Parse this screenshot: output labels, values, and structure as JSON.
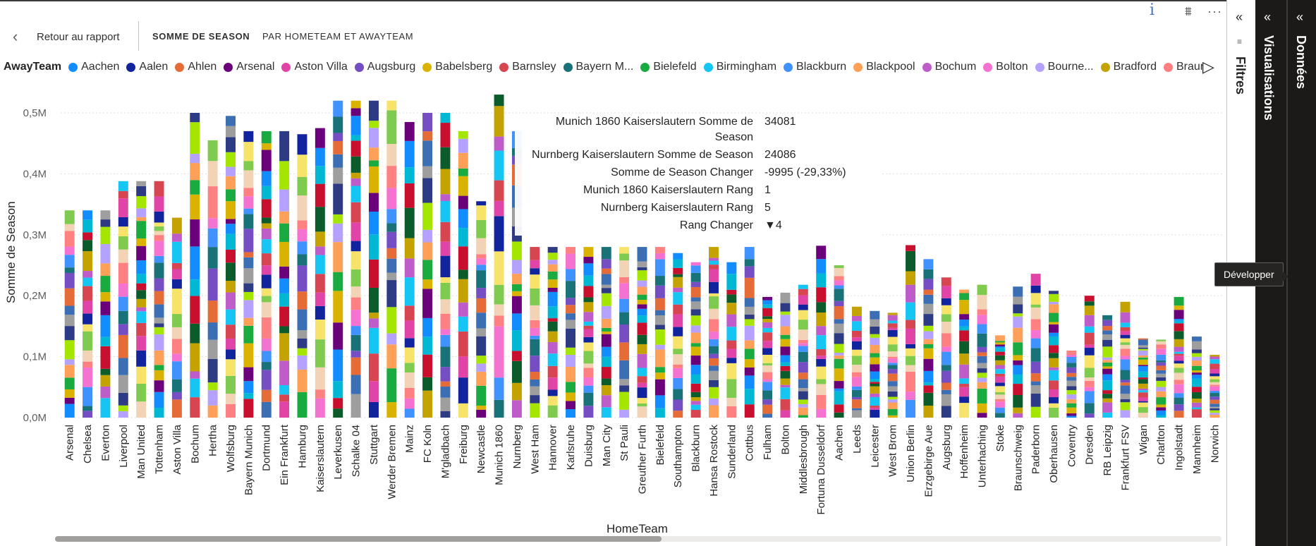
{
  "header": {
    "back_label": "Retour au rapport",
    "tabs": [
      {
        "label": "SOMME DE SEASON",
        "active": true
      },
      {
        "label": "PAR HOMETEAM ET AWAYTEAM",
        "active": false
      }
    ],
    "icons": [
      "info-icon",
      "filter-icon",
      "more-icon"
    ],
    "info_glyph": "i",
    "filter_glyph": "⩩",
    "more_glyph": "···"
  },
  "legend": {
    "title": "AwayTeam",
    "items": [
      {
        "label": "Aachen",
        "color": "#118DFF"
      },
      {
        "label": "Aalen",
        "color": "#12239E"
      },
      {
        "label": "Ahlen",
        "color": "#E66C37"
      },
      {
        "label": "Arsenal",
        "color": "#6B007B"
      },
      {
        "label": "Aston Villa",
        "color": "#E044A7"
      },
      {
        "label": "Augsburg",
        "color": "#744EC2"
      },
      {
        "label": "Babelsberg",
        "color": "#D9B300"
      },
      {
        "label": "Barnsley",
        "color": "#D64550"
      },
      {
        "label": "Bayern M...",
        "color": "#197278"
      },
      {
        "label": "Bielefeld",
        "color": "#1AAB40"
      },
      {
        "label": "Birmingham",
        "color": "#15C6F4"
      },
      {
        "label": "Blackburn",
        "color": "#4092FF"
      },
      {
        "label": "Blackpool",
        "color": "#FFA058"
      },
      {
        "label": "Bochum",
        "color": "#BE5DC9"
      },
      {
        "label": "Bolton",
        "color": "#F472D0"
      },
      {
        "label": "Bourne...",
        "color": "#B5A1FF"
      },
      {
        "label": "Bradford",
        "color": "#C4A200"
      },
      {
        "label": "Braunsc...",
        "color": "#FF8080"
      }
    ],
    "next_glyph": "▷"
  },
  "chart_data": {
    "type": "bar",
    "stacked": true,
    "title": "",
    "xlabel": "HomeTeam",
    "ylabel": "Somme de Season",
    "ylim": [
      0,
      500000
    ],
    "yticks": [
      "0,0M",
      "0,1M",
      "0,2M",
      "0,3M",
      "0,4M",
      "0,5M"
    ],
    "categories": [
      "Arsenal",
      "Chelsea",
      "Everton",
      "Liverpool",
      "Man United",
      "Tottenham",
      "Aston Villa",
      "Bochum",
      "Hertha",
      "Wolfsburg",
      "Bayern Munich",
      "Dortmund",
      "Ein Frankfurt",
      "Hamburg",
      "Kaiserslautern",
      "Leverkusen",
      "Schalke 04",
      "Stuttgart",
      "Werder Bremen",
      "Mainz",
      "FC Koln",
      "M'gladbach",
      "Freiburg",
      "Newcastle",
      "Munich 1860",
      "Nurnberg",
      "West Ham",
      "Hannover",
      "Karlsruhe",
      "Duisburg",
      "Man City",
      "St Pauli",
      "Greuther Furth",
      "Bielefeld",
      "Southampton",
      "Blackburn",
      "Hansa Rostock",
      "Sunderland",
      "Cottbus",
      "Fulham",
      "Bolton",
      "Middlesbrough",
      "Fortuna Dusseldorf",
      "Aachen",
      "Leeds",
      "Leicester",
      "West Brom",
      "Union Berlin",
      "Erzgebirge Aue",
      "Augsburg",
      "Hoffenheim",
      "Unterhaching",
      "Stoke",
      "Braunschweig",
      "Paderborn",
      "Oberhausen",
      "Coventry",
      "Dresden",
      "RB Leipzig",
      "Frankfurt FSV",
      "Wigan",
      "Charlton",
      "Ingolstadt",
      "Mannheim",
      "Norwich"
    ],
    "totals": [
      340000,
      340000,
      340000,
      388000,
      388000,
      388000,
      328000,
      500000,
      455000,
      495000,
      470000,
      470000,
      470000,
      465000,
      475000,
      520000,
      520000,
      520000,
      520000,
      485000,
      500000,
      500000,
      470000,
      355000,
      530000,
      470000,
      280000,
      280000,
      280000,
      280000,
      280000,
      280000,
      280000,
      280000,
      270000,
      255000,
      280000,
      255000,
      280000,
      198000,
      205000,
      218000,
      282000,
      250000,
      182000,
      175000,
      172000,
      283000,
      260000,
      230000,
      210000,
      218000,
      135000,
      215000,
      236000,
      208000,
      110000,
      200000,
      168000,
      190000,
      130000,
      128000,
      198000,
      133000,
      103000
    ]
  },
  "tooltip": {
    "rows": [
      {
        "key": "Munich 1860 Kaiserslautern Somme de Season",
        "value": "34081"
      },
      {
        "key": "Nurnberg Kaiserslautern Somme de Season",
        "value": "24086"
      },
      {
        "key": "Somme de Season Changer",
        "value": "-9995 (-29,33%)"
      },
      {
        "key": "Munich 1860 Kaiserslautern Rang",
        "value": "1"
      },
      {
        "key": "Nurnberg Kaiserslautern Rang",
        "value": "5"
      },
      {
        "key": "Rang Changer",
        "value": "▼4"
      }
    ]
  },
  "panes": {
    "filtres_label": "Filtres",
    "visualisations_label": "Visualisations",
    "donnees_label": "Données",
    "collapse_glyph": "«",
    "filtres_small_glyph": "≡"
  },
  "hover_tooltip": "Développer",
  "palette": [
    "#118DFF",
    "#12239E",
    "#E66C37",
    "#6B007B",
    "#E044A7",
    "#744EC2",
    "#D9B300",
    "#D64550",
    "#197278",
    "#1AAB40",
    "#15C6F4",
    "#4092FF",
    "#FFA058",
    "#BE5DC9",
    "#F472D0",
    "#B5A1FF",
    "#C4A200",
    "#FF8080",
    "#A4E600",
    "#0B5C2A",
    "#F2D3B5",
    "#2D3B85",
    "#C8102E",
    "#7FCB4F",
    "#9E9E9E",
    "#00B8D4",
    "#F7E36A",
    "#3C6EB4"
  ]
}
